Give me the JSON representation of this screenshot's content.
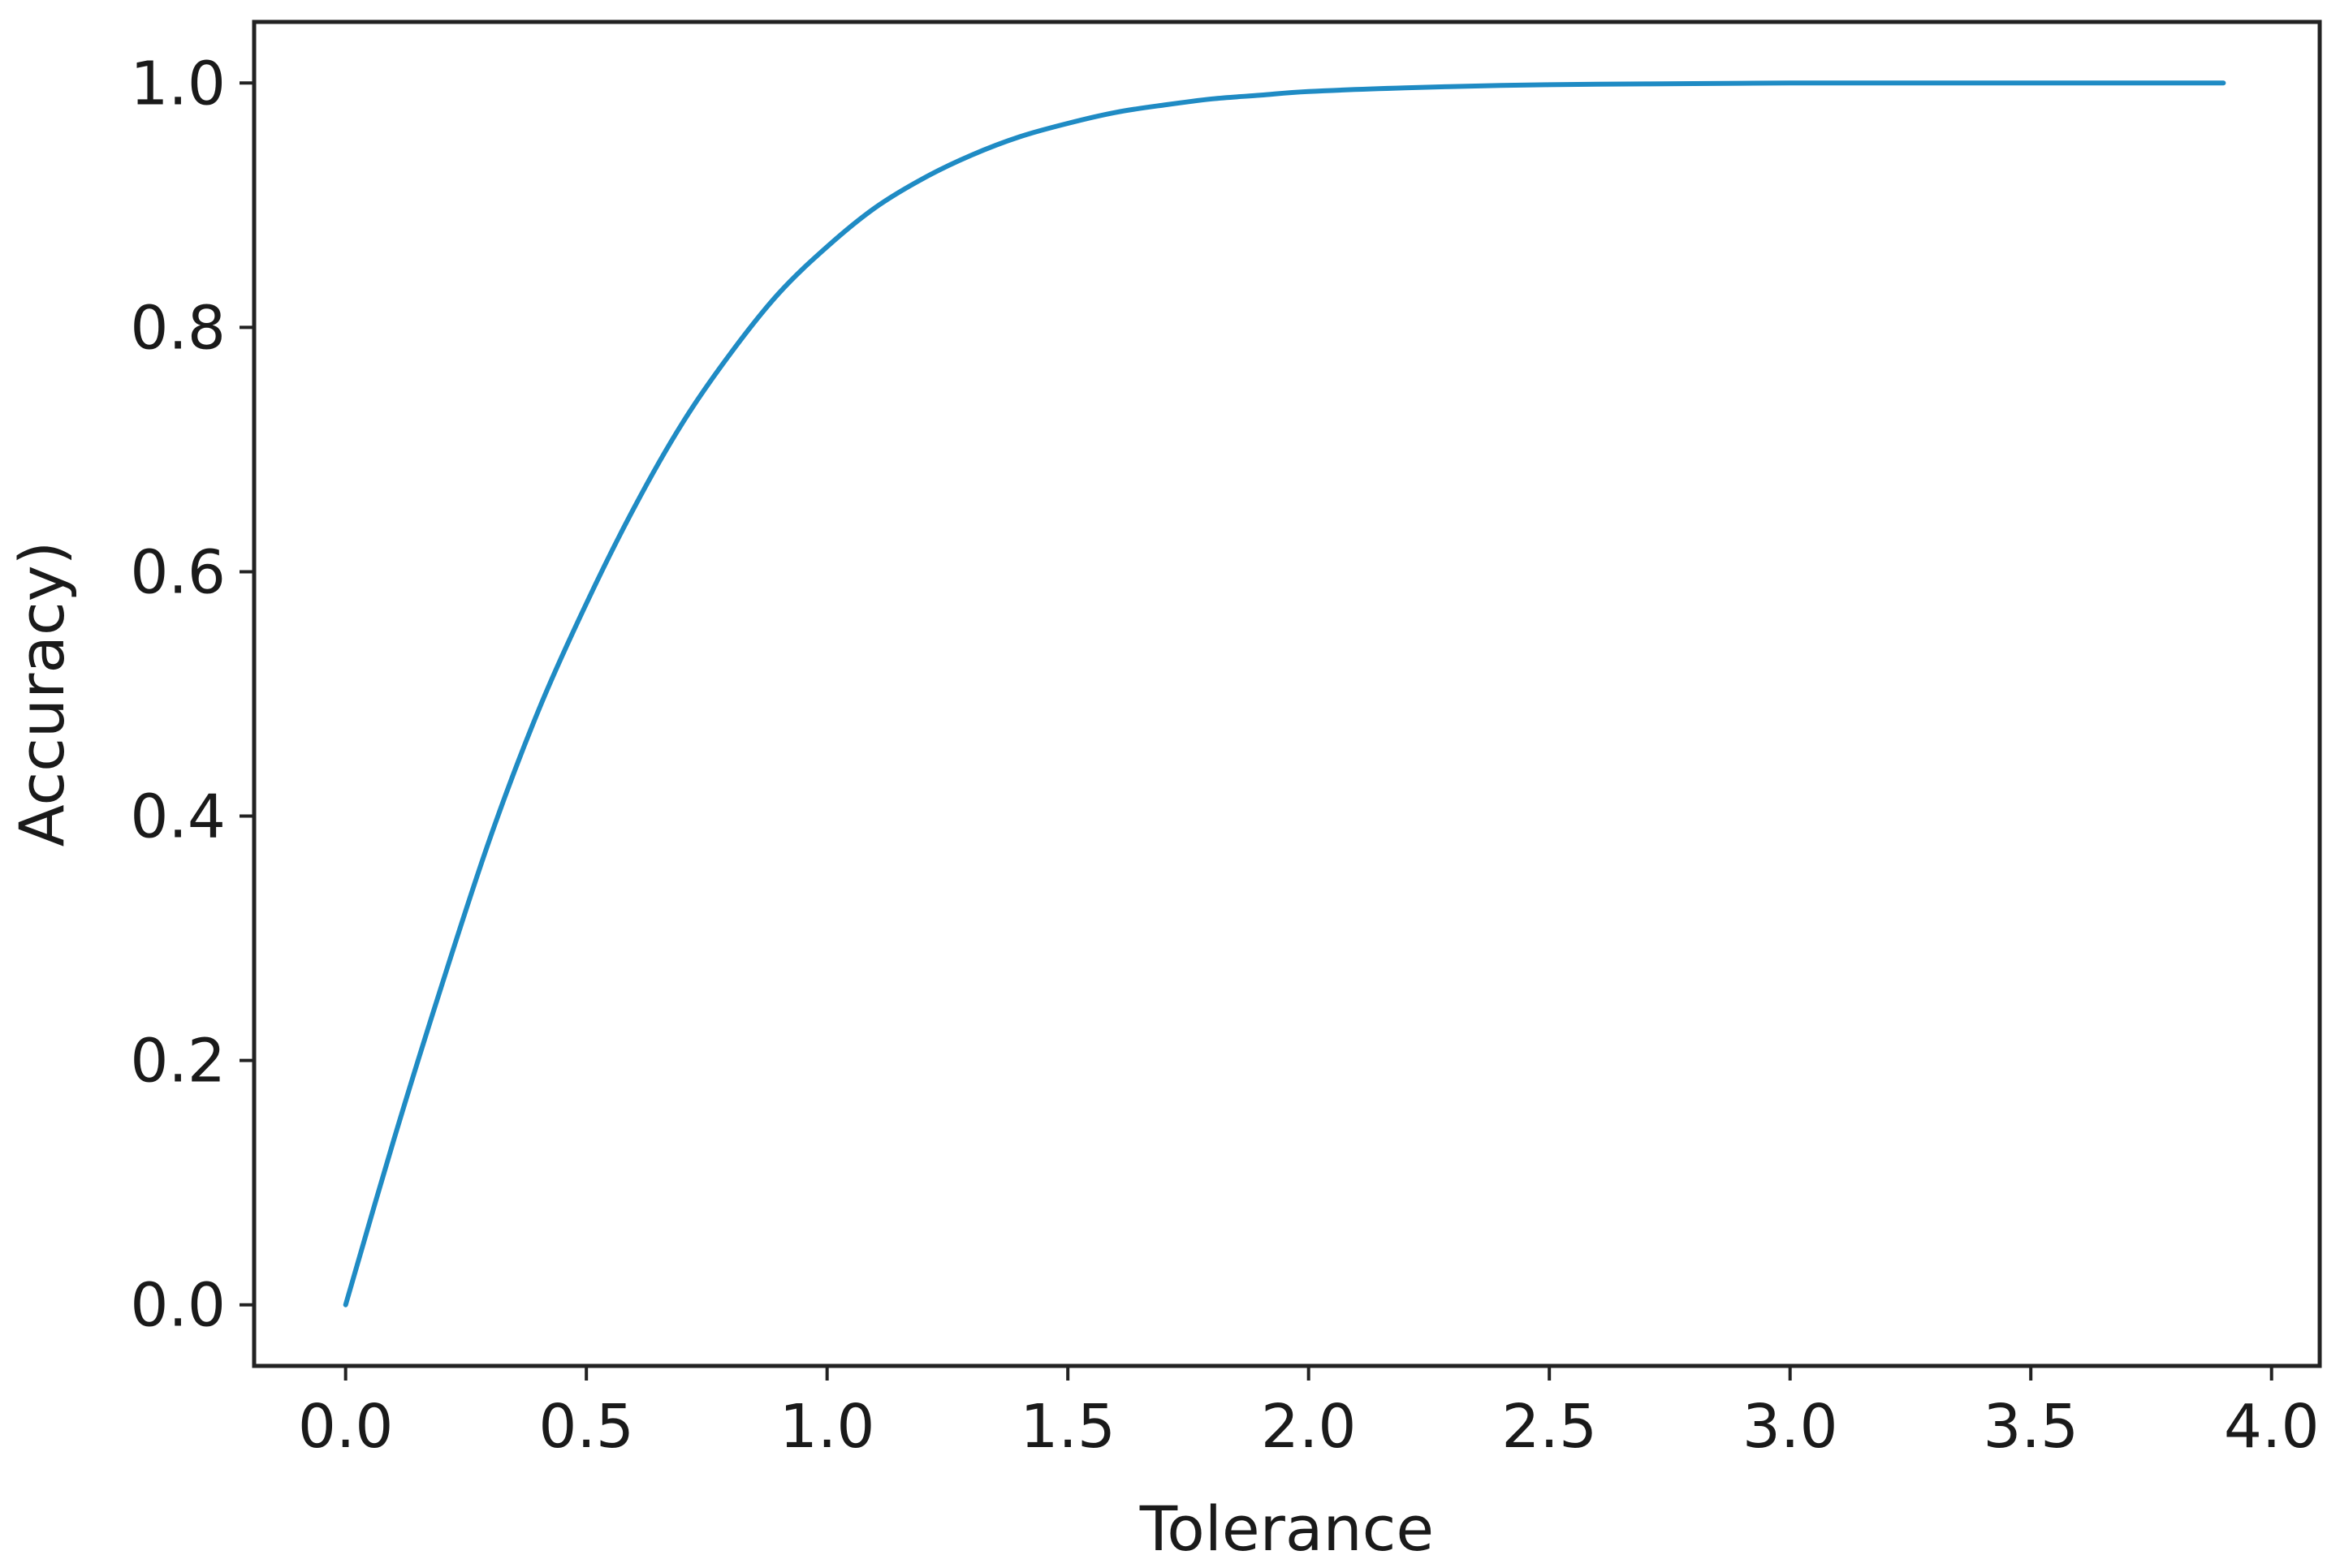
{
  "chart_data": {
    "type": "line",
    "title": "",
    "xlabel": "Tolerance",
    "ylabel": "Accuracy)",
    "xlim": [
      -0.19,
      4.1
    ],
    "ylim": [
      -0.05,
      1.05
    ],
    "xticks": [
      0.0,
      0.5,
      1.0,
      1.5,
      2.0,
      2.5,
      3.0,
      3.5,
      4.0
    ],
    "xtick_labels": [
      "0.0",
      "0.5",
      "1.0",
      "1.5",
      "2.0",
      "2.5",
      "3.0",
      "3.5",
      "4.0"
    ],
    "yticks": [
      0.0,
      0.2,
      0.4,
      0.6,
      0.8,
      1.0
    ],
    "ytick_labels": [
      "0.0",
      "0.2",
      "0.4",
      "0.6",
      "0.8",
      "1.0"
    ],
    "grid": false,
    "line_color": "#1f8bc4",
    "series": [
      {
        "x": [
          0.0,
          0.1,
          0.2,
          0.3,
          0.4,
          0.5,
          0.6,
          0.7,
          0.8,
          0.9,
          1.0,
          1.1,
          1.2,
          1.3,
          1.4,
          1.5,
          1.6,
          1.7,
          1.8,
          1.9,
          2.0,
          2.2,
          2.4,
          2.6,
          2.8,
          3.0,
          3.2,
          3.4,
          3.6,
          3.8,
          3.9
        ],
        "y": [
          0.0,
          0.135,
          0.262,
          0.382,
          0.486,
          0.574,
          0.653,
          0.722,
          0.779,
          0.828,
          0.866,
          0.898,
          0.922,
          0.941,
          0.956,
          0.967,
          0.976,
          0.982,
          0.987,
          0.99,
          0.993,
          0.996,
          0.998,
          0.999,
          0.9995,
          1.0,
          1.0,
          1.0,
          1.0,
          1.0,
          1.0
        ]
      }
    ]
  }
}
